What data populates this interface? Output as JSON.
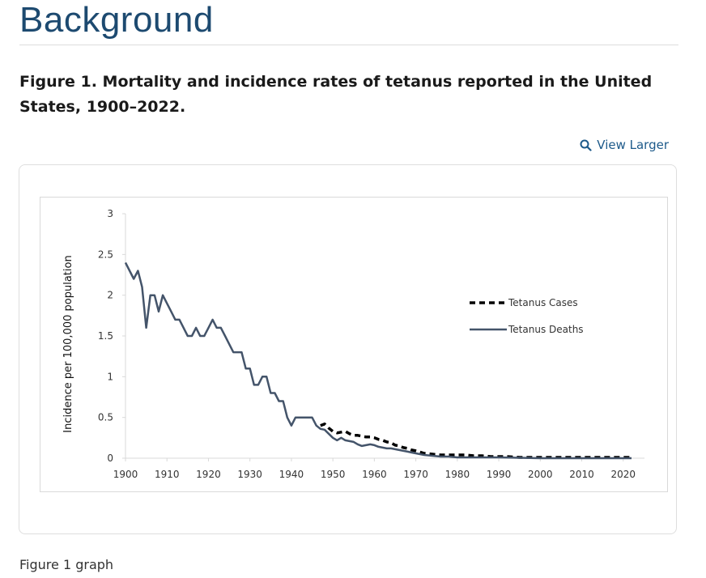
{
  "section": {
    "title": "Background"
  },
  "figure": {
    "caption": "Figure 1. Mortality and incidence rates of tetanus reported in the United States, 1900–2022.",
    "view_larger_label": "View Larger",
    "view_larger_icon": "search-icon",
    "alt_label": "Figure 1 graph"
  },
  "colors": {
    "heading": "#1d4a70",
    "link": "#1d5a8a",
    "deaths_line": "#44546a",
    "cases_line": "#000000"
  },
  "chart_data": {
    "type": "line",
    "title": "",
    "xlabel": "",
    "ylabel": "Incidence per 100,000 population",
    "xlim": [
      1900,
      2022
    ],
    "ylim": [
      0,
      3
    ],
    "x_ticks": [
      1900,
      1910,
      1920,
      1930,
      1940,
      1950,
      1960,
      1970,
      1980,
      1990,
      2000,
      2010,
      2020
    ],
    "y_ticks": [
      0,
      0.5,
      1,
      1.5,
      2,
      2.5,
      3
    ],
    "y_tick_labels": [
      "0",
      "0.5",
      "1",
      "1.5",
      "2",
      "2.5",
      "3"
    ],
    "grid": false,
    "legend_position": "right",
    "series": [
      {
        "name": "Tetanus Cases",
        "style": "dashed",
        "color": "#000000",
        "x": [
          1947,
          1948,
          1949,
          1950,
          1951,
          1952,
          1953,
          1954,
          1955,
          1956,
          1957,
          1958,
          1959,
          1960,
          1961,
          1962,
          1963,
          1964,
          1965,
          1966,
          1967,
          1968,
          1969,
          1970,
          1972,
          1974,
          1976,
          1978,
          1980,
          1982,
          1984,
          1986,
          1988,
          1990,
          1992,
          1995,
          2000,
          2005,
          2010,
          2015,
          2022
        ],
        "values": [
          0.4,
          0.42,
          0.37,
          0.33,
          0.31,
          0.32,
          0.33,
          0.3,
          0.28,
          0.28,
          0.27,
          0.26,
          0.26,
          0.25,
          0.23,
          0.22,
          0.2,
          0.19,
          0.16,
          0.15,
          0.13,
          0.12,
          0.1,
          0.09,
          0.06,
          0.05,
          0.04,
          0.04,
          0.04,
          0.04,
          0.03,
          0.03,
          0.02,
          0.02,
          0.02,
          0.01,
          0.01,
          0.01,
          0.01,
          0.01,
          0.01
        ]
      },
      {
        "name": "Tetanus Deaths",
        "style": "solid",
        "color": "#44546a",
        "x": [
          1900,
          1901,
          1902,
          1903,
          1904,
          1905,
          1906,
          1907,
          1908,
          1909,
          1910,
          1911,
          1912,
          1913,
          1914,
          1915,
          1916,
          1917,
          1918,
          1919,
          1920,
          1921,
          1922,
          1923,
          1924,
          1925,
          1926,
          1927,
          1928,
          1929,
          1930,
          1931,
          1932,
          1933,
          1934,
          1935,
          1936,
          1937,
          1938,
          1939,
          1940,
          1941,
          1942,
          1943,
          1944,
          1945,
          1946,
          1947,
          1948,
          1949,
          1950,
          1951,
          1952,
          1953,
          1954,
          1955,
          1956,
          1957,
          1958,
          1959,
          1960,
          1961,
          1962,
          1963,
          1964,
          1965,
          1966,
          1967,
          1968,
          1969,
          1970,
          1972,
          1974,
          1976,
          1978,
          1980,
          1985,
          1990,
          2000,
          2010,
          2022
        ],
        "values": [
          2.4,
          2.3,
          2.2,
          2.3,
          2.1,
          1.6,
          2.0,
          2.0,
          1.8,
          2.0,
          1.9,
          1.8,
          1.7,
          1.7,
          1.6,
          1.5,
          1.5,
          1.6,
          1.5,
          1.5,
          1.6,
          1.7,
          1.6,
          1.6,
          1.5,
          1.4,
          1.3,
          1.3,
          1.3,
          1.1,
          1.1,
          0.9,
          0.9,
          1.0,
          1.0,
          0.8,
          0.8,
          0.7,
          0.7,
          0.5,
          0.4,
          0.5,
          0.5,
          0.5,
          0.5,
          0.5,
          0.4,
          0.36,
          0.35,
          0.3,
          0.25,
          0.22,
          0.25,
          0.22,
          0.21,
          0.2,
          0.17,
          0.15,
          0.16,
          0.17,
          0.16,
          0.14,
          0.13,
          0.12,
          0.12,
          0.11,
          0.1,
          0.09,
          0.08,
          0.07,
          0.06,
          0.04,
          0.03,
          0.02,
          0.02,
          0.01,
          0.01,
          0.01,
          0.0,
          0.0,
          0.0
        ]
      }
    ]
  }
}
